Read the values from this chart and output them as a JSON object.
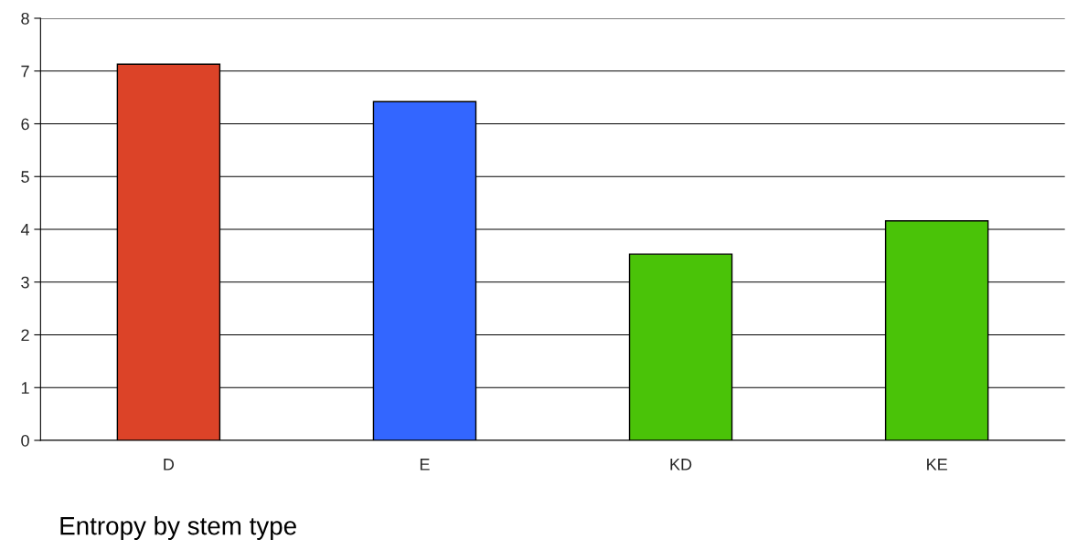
{
  "chart_data": {
    "type": "bar",
    "title": "Entropy by stem type",
    "categories": [
      "D",
      "E",
      "KD",
      "KE"
    ],
    "values": [
      7.13,
      6.42,
      3.53,
      4.16
    ],
    "colors": [
      "#dc4328",
      "#3366ff",
      "#4ac308",
      "#4ac308"
    ],
    "ylim": [
      0,
      8
    ],
    "yticks": [
      0,
      1,
      2,
      3,
      4,
      5,
      6,
      7,
      8
    ],
    "grid": "y",
    "legend": false
  }
}
